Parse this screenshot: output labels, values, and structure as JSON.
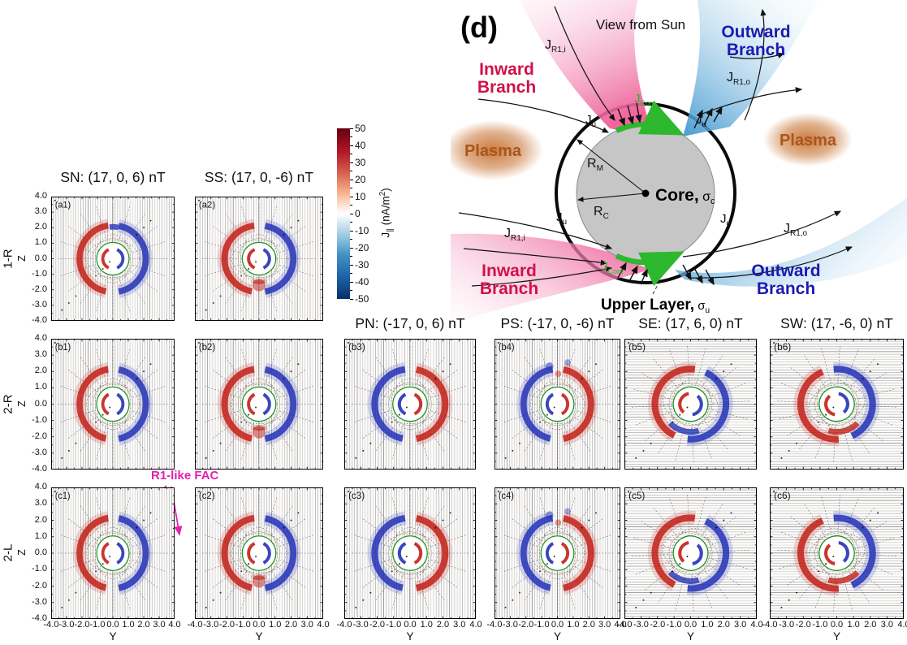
{
  "colors": {
    "fac_red": "#c22017",
    "fac_blue": "#2433b6",
    "magenta": "#e321ae",
    "green_circle": "#239123",
    "branch_pink": "#ee5f98",
    "branch_blue": "#3f97cf",
    "jcore_green": "#2db82d",
    "inward_text": "#d0114b",
    "outward_text": "#1b1bb0",
    "plasma_text": "#a9561d"
  },
  "chart_data": {
    "type": "heatmap",
    "quantity": "field-aligned current density J-parallel",
    "xlabel": "Y",
    "ylabel": "Z",
    "xlim": [
      -4,
      4
    ],
    "ylim": [
      -4,
      4
    ],
    "x_ticks": [
      "-4.0",
      "-3.0",
      "-2.0",
      "-1.0",
      "0.0",
      "1.0",
      "2.0",
      "3.0",
      "4.0"
    ],
    "y_ticks": [
      "4.0",
      "3.0",
      "2.0",
      "1.0",
      "0.0",
      "-1.0",
      "-2.0",
      "-3.0",
      "-4.0"
    ],
    "colorbar": {
      "label_sym": "J",
      "label_sub": "∥",
      "label_units_pre": " (nA/m",
      "label_units_sup": "2",
      "label_units_post": ")",
      "ticks": [
        "50",
        "40",
        "30",
        "20",
        "10",
        "0",
        "-10",
        "-20",
        "-30",
        "-40",
        "-50"
      ],
      "max_color": "#67000d",
      "mid_color": "#ffffff",
      "min_color": "#08306b"
    },
    "rows": [
      {
        "key": "1-R"
      },
      {
        "key": "2-R"
      },
      {
        "key": "2-L"
      }
    ],
    "columns": [
      {
        "key": "SN",
        "title": "SN: (17, 0, 6) nT",
        "imf_nT": [
          17,
          0,
          6
        ],
        "title_position": "row-a"
      },
      {
        "key": "SS",
        "title": "SS: (17, 0, -6) nT",
        "imf_nT": [
          17,
          0,
          -6
        ],
        "title_position": "row-a"
      },
      {
        "key": "PN",
        "title": "PN: (-17, 0, 6) nT",
        "imf_nT": [
          -17,
          0,
          6
        ],
        "title_position": "row-b"
      },
      {
        "key": "PS",
        "title": "PS: (-17, 0, -6) nT",
        "imf_nT": [
          -17,
          0,
          -6
        ],
        "title_position": "row-b"
      },
      {
        "key": "SE",
        "title": "SE: (17, 6, 0) nT",
        "imf_nT": [
          17,
          6,
          0
        ],
        "title_position": "row-b"
      },
      {
        "key": "SW",
        "title": "SW: (17, -6, 0) nT",
        "imf_nT": [
          17,
          -6,
          0
        ],
        "title_position": "row-b"
      }
    ],
    "panels": [
      {
        "id": "(a1)",
        "row": "1-R",
        "col": "SN",
        "left_lobe": "red",
        "right_lobe": "blue",
        "hatch": "vertical",
        "tilt": 0,
        "features": [
          "top-blue-notch"
        ]
      },
      {
        "id": "(a2)",
        "row": "1-R",
        "col": "SS",
        "left_lobe": "red",
        "right_lobe": "blue",
        "hatch": "vertical",
        "tilt": 0,
        "features": [
          "bottom-red-blob"
        ]
      },
      {
        "id": "(b1)",
        "row": "2-R",
        "col": "SN",
        "left_lobe": "red",
        "right_lobe": "blue",
        "hatch": "vertical",
        "tilt": 0,
        "features": []
      },
      {
        "id": "(b2)",
        "row": "2-R",
        "col": "SS",
        "left_lobe": "red",
        "right_lobe": "blue",
        "hatch": "vertical",
        "tilt": 0,
        "features": [
          "bottom-red-blob"
        ]
      },
      {
        "id": "(b3)",
        "row": "2-R",
        "col": "PN",
        "left_lobe": "blue",
        "right_lobe": "red",
        "hatch": "vertical",
        "tilt": 0,
        "features": []
      },
      {
        "id": "(b4)",
        "row": "2-R",
        "col": "PS",
        "left_lobe": "blue",
        "right_lobe": "red",
        "hatch": "vertical",
        "tilt": 0,
        "features": [
          "top-messy"
        ]
      },
      {
        "id": "(b5)",
        "row": "2-R",
        "col": "SE",
        "left_lobe": "red",
        "right_lobe": "blue",
        "hatch": "horizontal",
        "tilt": 15,
        "features": [
          "bottom-blue-arc"
        ]
      },
      {
        "id": "(b6)",
        "row": "2-R",
        "col": "SW",
        "left_lobe": "red",
        "right_lobe": "blue",
        "hatch": "horizontal",
        "tilt": -15,
        "features": [
          "bottom-red-arc"
        ]
      },
      {
        "id": "(c1)",
        "row": "2-L",
        "col": "SN",
        "left_lobe": "red",
        "right_lobe": "blue",
        "hatch": "vertical",
        "tilt": 0,
        "features": []
      },
      {
        "id": "(c2)",
        "row": "2-L",
        "col": "SS",
        "left_lobe": "red",
        "right_lobe": "blue",
        "hatch": "vertical",
        "tilt": 0,
        "features": [
          "bottom-red-blob"
        ]
      },
      {
        "id": "(c3)",
        "row": "2-L",
        "col": "PN",
        "left_lobe": "blue",
        "right_lobe": "red",
        "hatch": "vertical",
        "tilt": 0,
        "features": []
      },
      {
        "id": "(c4)",
        "row": "2-L",
        "col": "PS",
        "left_lobe": "blue",
        "right_lobe": "red",
        "hatch": "vertical",
        "tilt": 0,
        "features": [
          "top-messy"
        ]
      },
      {
        "id": "(c5)",
        "row": "2-L",
        "col": "SE",
        "left_lobe": "red",
        "right_lobe": "blue",
        "hatch": "horizontal",
        "tilt": 15,
        "features": [
          "bottom-blue-arc"
        ]
      },
      {
        "id": "(c6)",
        "row": "2-L",
        "col": "SW",
        "left_lobe": "red",
        "right_lobe": "blue",
        "hatch": "horizontal",
        "tilt": -15,
        "features": [
          "bottom-red-arc"
        ]
      }
    ],
    "annotation": {
      "text": "R1-like FAC",
      "color": "#e321ae",
      "targets": [
        "(c1)"
      ]
    }
  },
  "diagram": {
    "panel_label": "(d)",
    "view_label": "View from Sun",
    "inward_line1": "Inward",
    "inward_line2": "Branch",
    "outward_line1": "Outward",
    "outward_line2": "Branch",
    "plasma": "Plasma",
    "core_word": "Core,",
    "sigma": "σ",
    "core_sub": "c",
    "upper_word": "Upper Layer,",
    "upper_sub": "u",
    "j_sym": "J",
    "sub_r1i": "R1,i",
    "sub_r1o": "R1,o",
    "sub_u": "u",
    "sub_core": "Core",
    "r_sym": "R",
    "sub_m": "M",
    "sub_c": "C"
  }
}
